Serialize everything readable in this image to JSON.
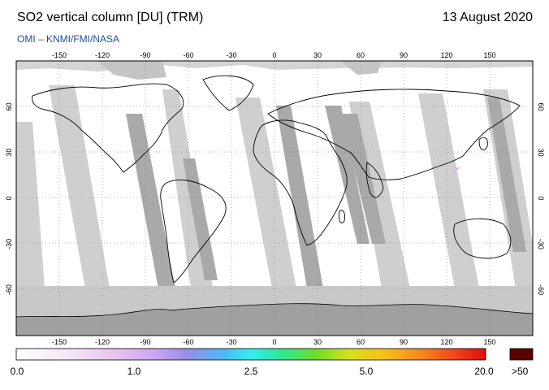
{
  "header": {
    "title": "SO2 vertical column [DU] (TRM)",
    "date": "13 August 2020",
    "credit": "OMI  –  KNMI/FMI/NASA"
  },
  "map": {
    "projection": "equirectangular",
    "lon_range": [
      -180,
      180
    ],
    "lat_range": [
      -90,
      90
    ],
    "lon_ticks": [
      -150,
      -120,
      -90,
      -60,
      -30,
      0,
      30,
      60,
      90,
      120,
      150
    ],
    "lat_ticks": [
      60,
      30,
      0,
      -30,
      -60
    ],
    "colors": {
      "valid_data": "#ffffff",
      "no_data_swath_gap": "#cfcfcf",
      "no_data_darker_strip": "#a9a9a9",
      "polar_no_data": "#c8c8c8",
      "antarctic_land": "#a0a0a0",
      "coastline": "#000000"
    }
  },
  "colorbar": {
    "labels": [
      "0.0",
      "1.0",
      "2.5",
      "5.0",
      "20.0"
    ],
    "over_label": ">50",
    "over_color": "#5a0000",
    "gradient_stops": [
      {
        "at": 0.0,
        "color": "#ffffff"
      },
      {
        "at": 0.12,
        "color": "#f3e4f5"
      },
      {
        "at": 0.22,
        "color": "#e7bff0"
      },
      {
        "at": 0.3,
        "color": "#c8a4f2"
      },
      {
        "at": 0.36,
        "color": "#9a8ee8"
      },
      {
        "at": 0.44,
        "color": "#4fb7f5"
      },
      {
        "at": 0.5,
        "color": "#33eef0"
      },
      {
        "at": 0.57,
        "color": "#2fe88a"
      },
      {
        "at": 0.64,
        "color": "#6fdc2a"
      },
      {
        "at": 0.71,
        "color": "#d8e018"
      },
      {
        "at": 0.78,
        "color": "#f6c21a"
      },
      {
        "at": 0.86,
        "color": "#f58a1c"
      },
      {
        "at": 0.93,
        "color": "#f04a1a"
      },
      {
        "at": 1.0,
        "color": "#e00d0d"
      }
    ]
  }
}
